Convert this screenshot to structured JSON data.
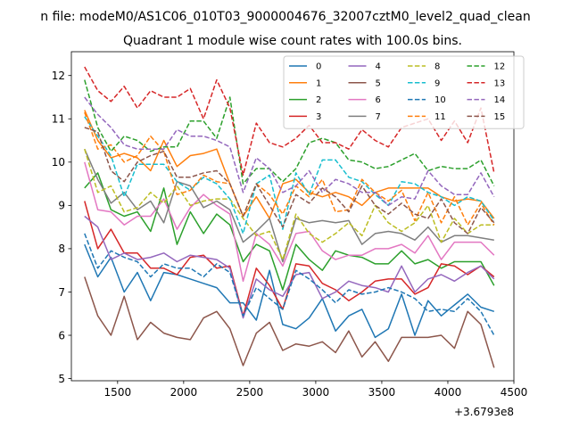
{
  "chart_data": {
    "type": "line",
    "suptitle": "n file: modeM0/AS1C06_010T03_9000004676_32007cztM0_level2_quad_clean",
    "title": "Quadrant 1 module wise count rates with 100.0s bins.",
    "xlabel": "",
    "ylabel": "",
    "offset_text": "+3.6793e8",
    "xlim": [
      1150,
      4500
    ],
    "ylim": [
      4.95,
      12.55
    ],
    "xticks": [
      1500,
      2000,
      2500,
      3000,
      3500,
      4000,
      4500
    ],
    "yticks": [
      5,
      6,
      7,
      8,
      9,
      10,
      11,
      12
    ],
    "legend_position": "top-right",
    "legend_columns": 4,
    "x": [
      1250,
      1350,
      1450,
      1550,
      1650,
      1750,
      1850,
      1950,
      2050,
      2150,
      2250,
      2350,
      2450,
      2550,
      2650,
      2750,
      2850,
      2950,
      3050,
      3150,
      3250,
      3350,
      3450,
      3550,
      3650,
      3750,
      3850,
      3950,
      4050,
      4150,
      4250,
      4350
    ],
    "series": [
      {
        "name": "0",
        "color": "#1f77b4",
        "dash": "solid",
        "values": [
          8.1,
          7.35,
          7.8,
          7.0,
          7.45,
          6.8,
          7.45,
          7.4,
          7.3,
          7.2,
          7.1,
          6.75,
          6.75,
          6.35,
          7.5,
          6.25,
          6.15,
          6.4,
          6.85,
          6.1,
          6.45,
          6.6,
          5.95,
          6.15,
          6.95,
          6.0,
          6.8,
          6.45,
          6.7,
          6.95,
          6.65,
          6.55
        ]
      },
      {
        "name": "1",
        "color": "#ff7f0e",
        "dash": "solid",
        "values": [
          11.2,
          10.5,
          10.1,
          10.2,
          10.1,
          9.8,
          10.5,
          9.9,
          10.15,
          10.2,
          10.3,
          9.5,
          8.75,
          9.2,
          8.7,
          9.5,
          9.6,
          9.3,
          9.2,
          9.3,
          9.2,
          9.0,
          9.3,
          9.4,
          9.4,
          9.4,
          9.4,
          9.2,
          9.1,
          9.15,
          9.1,
          8.7
        ]
      },
      {
        "name": "2",
        "color": "#2ca02c",
        "dash": "solid",
        "values": [
          9.4,
          9.75,
          8.9,
          8.75,
          8.85,
          8.4,
          9.4,
          8.1,
          8.85,
          8.35,
          8.8,
          8.55,
          7.7,
          8.1,
          7.95,
          7.05,
          8.1,
          7.75,
          7.5,
          7.95,
          7.85,
          7.8,
          7.65,
          7.65,
          7.95,
          7.65,
          7.75,
          7.55,
          7.7,
          7.7,
          7.7,
          7.15
        ]
      },
      {
        "name": "3",
        "color": "#d62728",
        "dash": "solid",
        "values": [
          9.1,
          8.0,
          8.45,
          7.9,
          7.9,
          7.55,
          7.55,
          7.4,
          7.8,
          7.85,
          7.55,
          7.6,
          6.45,
          7.55,
          7.15,
          6.6,
          7.65,
          7.6,
          7.2,
          7.05,
          6.8,
          7.0,
          7.25,
          7.3,
          7.3,
          6.95,
          7.1,
          7.65,
          7.6,
          7.4,
          7.6,
          7.35
        ]
      },
      {
        "name": "4",
        "color": "#9467bd",
        "dash": "solid",
        "values": [
          8.75,
          8.5,
          7.75,
          7.9,
          7.75,
          7.8,
          7.9,
          7.7,
          7.85,
          7.8,
          7.75,
          7.55,
          6.4,
          7.3,
          7.05,
          6.9,
          7.4,
          7.45,
          6.85,
          7.0,
          7.25,
          7.15,
          7.1,
          7.0,
          7.6,
          7.0,
          7.3,
          7.4,
          7.25,
          7.45,
          7.6,
          7.3
        ]
      },
      {
        "name": "5",
        "color": "#8c564b",
        "dash": "solid",
        "values": [
          7.35,
          6.45,
          6.0,
          6.9,
          5.9,
          6.3,
          6.05,
          5.95,
          5.9,
          6.4,
          6.55,
          6.15,
          5.3,
          6.05,
          6.3,
          5.65,
          5.8,
          5.75,
          5.85,
          5.6,
          6.1,
          5.5,
          5.85,
          5.4,
          5.95,
          5.95,
          5.95,
          6.0,
          5.7,
          6.55,
          6.25,
          5.25
        ]
      },
      {
        "name": "6",
        "color": "#e377c2",
        "dash": "solid",
        "values": [
          10.0,
          8.9,
          8.85,
          8.55,
          8.75,
          8.75,
          9.15,
          8.45,
          8.95,
          9.25,
          9.0,
          8.8,
          7.25,
          8.35,
          8.1,
          7.6,
          8.35,
          8.4,
          7.95,
          7.75,
          7.85,
          7.85,
          8.0,
          8.0,
          8.1,
          7.9,
          8.3,
          7.75,
          8.15,
          8.15,
          8.15,
          7.85
        ]
      },
      {
        "name": "7",
        "color": "#7f7f7f",
        "dash": "solid",
        "values": [
          10.3,
          9.6,
          9.05,
          9.3,
          8.9,
          9.1,
          8.6,
          9.55,
          9.45,
          8.95,
          9.1,
          8.9,
          8.15,
          8.4,
          8.7,
          7.7,
          8.7,
          8.6,
          8.65,
          8.6,
          8.65,
          8.1,
          8.35,
          8.4,
          8.35,
          8.2,
          8.5,
          8.15,
          8.3,
          8.3,
          8.25,
          8.2
        ]
      },
      {
        "name": "8",
        "color": "#bcbd22",
        "dash": "dashed",
        "values": [
          10.3,
          9.3,
          9.45,
          8.85,
          8.95,
          9.3,
          9.05,
          9.45,
          9.0,
          9.1,
          9.15,
          9.15,
          8.7,
          8.3,
          8.4,
          7.75,
          8.8,
          8.35,
          8.15,
          8.35,
          8.6,
          8.3,
          9.0,
          8.6,
          8.4,
          8.6,
          9.0,
          8.15,
          8.7,
          8.35,
          8.55,
          8.55
        ]
      },
      {
        "name": "9",
        "color": "#17becf",
        "dash": "dashed",
        "values": [
          11.05,
          10.6,
          10.15,
          9.2,
          9.95,
          9.95,
          9.95,
          9.55,
          9.35,
          9.65,
          9.5,
          9.15,
          8.35,
          9.5,
          9.7,
          8.45,
          9.75,
          9.25,
          10.05,
          10.05,
          9.65,
          9.55,
          9.25,
          9.0,
          9.55,
          9.5,
          9.3,
          9.2,
          9.0,
          9.2,
          9.1,
          8.65
        ]
      },
      {
        "name": "10",
        "color": "#1f77b4",
        "dash": "dashed",
        "values": [
          8.35,
          7.55,
          7.95,
          7.8,
          7.7,
          7.35,
          7.65,
          7.55,
          7.55,
          7.35,
          7.65,
          7.45,
          6.45,
          7.1,
          6.85,
          6.6,
          7.5,
          7.3,
          7.05,
          6.75,
          7.05,
          6.95,
          7.0,
          7.1,
          7.0,
          6.85,
          6.55,
          6.6,
          6.55,
          6.85,
          6.55,
          6.0
        ]
      },
      {
        "name": "11",
        "color": "#ff7f0e",
        "dash": "dashed",
        "values": [
          11.15,
          10.3,
          10.4,
          10.0,
          10.15,
          10.6,
          10.25,
          9.25,
          9.35,
          9.7,
          9.55,
          9.5,
          8.75,
          9.5,
          9.25,
          8.8,
          9.45,
          9.2,
          9.6,
          8.85,
          8.9,
          9.6,
          9.3,
          9.1,
          9.35,
          8.65,
          9.3,
          8.6,
          9.2,
          8.55,
          9.05,
          8.55
        ]
      },
      {
        "name": "12",
        "color": "#2ca02c",
        "dash": "dashed",
        "values": [
          11.9,
          10.8,
          10.25,
          10.6,
          10.5,
          10.25,
          10.35,
          10.35,
          10.95,
          10.95,
          10.55,
          11.5,
          9.5,
          9.85,
          9.85,
          9.55,
          9.85,
          10.45,
          10.55,
          10.45,
          10.05,
          10.0,
          9.85,
          9.9,
          10.05,
          10.2,
          9.8,
          9.9,
          9.85,
          9.85,
          10.05,
          9.45
        ]
      },
      {
        "name": "13",
        "color": "#d62728",
        "dash": "dashed",
        "values": [
          12.2,
          11.65,
          11.4,
          11.75,
          11.25,
          11.65,
          11.5,
          11.5,
          11.7,
          11.0,
          11.9,
          11.25,
          9.7,
          10.9,
          10.45,
          10.35,
          10.55,
          10.85,
          10.45,
          10.45,
          10.3,
          10.75,
          10.5,
          10.35,
          10.8,
          10.9,
          11.0,
          10.5,
          10.95,
          10.45,
          11.25,
          9.75
        ]
      },
      {
        "name": "14",
        "color": "#9467bd",
        "dash": "dashed",
        "values": [
          11.5,
          11.1,
          10.8,
          10.4,
          10.3,
          10.3,
          10.3,
          10.75,
          10.6,
          10.6,
          10.5,
          10.35,
          9.3,
          10.1,
          9.85,
          9.3,
          9.45,
          9.8,
          9.3,
          9.6,
          9.5,
          9.3,
          9.3,
          9.0,
          9.2,
          9.15,
          9.8,
          9.45,
          9.25,
          9.25,
          9.75,
          9.2
        ]
      },
      {
        "name": "15",
        "color": "#8c564b",
        "dash": "dashed",
        "values": [
          10.8,
          10.7,
          9.8,
          9.55,
          10.0,
          10.15,
          10.25,
          9.65,
          9.65,
          9.75,
          9.8,
          9.5,
          8.75,
          9.5,
          9.0,
          8.5,
          9.25,
          9.05,
          9.4,
          9.2,
          8.85,
          9.45,
          9.0,
          8.8,
          9.05,
          8.8,
          8.7,
          9.15,
          8.6,
          8.35,
          8.95,
          8.6
        ]
      }
    ]
  }
}
